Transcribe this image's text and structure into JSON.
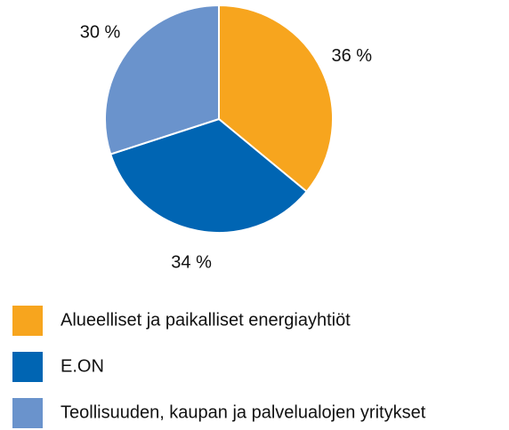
{
  "chart_data": {
    "type": "pie",
    "categories": [
      "Alueelliset ja paikalliset energiayhtiöt",
      "E.ON",
      "Teollisuuden, kaupan ja palvelualojen yritykset"
    ],
    "values": [
      36,
      34,
      30
    ],
    "value_labels": [
      "36 %",
      "34 %",
      "30 %"
    ],
    "colors": [
      "#f7a51e",
      "#0065b3",
      "#6a93cc"
    ]
  }
}
